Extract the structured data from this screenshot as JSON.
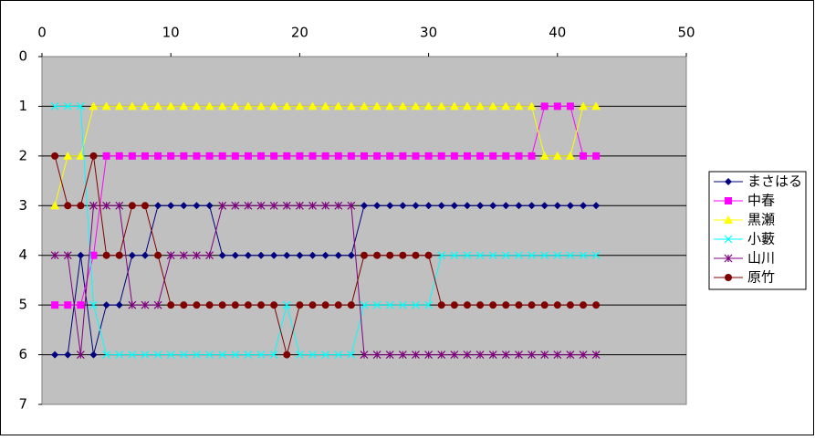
{
  "chart_data": {
    "type": "line",
    "x": [
      1,
      2,
      3,
      4,
      5,
      6,
      7,
      8,
      9,
      10,
      11,
      12,
      13,
      14,
      15,
      16,
      17,
      18,
      19,
      20,
      21,
      22,
      23,
      24,
      25,
      26,
      27,
      28,
      29,
      30,
      31,
      32,
      33,
      34,
      35,
      36,
      37,
      38,
      39,
      40,
      41,
      42,
      43
    ],
    "xlim": [
      0,
      50
    ],
    "xticks": [
      0,
      10,
      20,
      30,
      40,
      50
    ],
    "x_axis_position": "top",
    "ylim": [
      0,
      7
    ],
    "yticks": [
      0,
      1,
      2,
      3,
      4,
      5,
      6,
      7
    ],
    "y_inverted": true,
    "grid": true,
    "legend": "right",
    "plot_background": "#c0c0c0",
    "series": [
      {
        "name": "まさはる",
        "color": "#000080",
        "marker": "diamond",
        "values": [
          6,
          6,
          4,
          6,
          5,
          5,
          4,
          4,
          3,
          3,
          3,
          3,
          3,
          4,
          4,
          4,
          4,
          4,
          4,
          4,
          4,
          4,
          4,
          4,
          3,
          3,
          3,
          3,
          3,
          3,
          3,
          3,
          3,
          3,
          3,
          3,
          3,
          3,
          3,
          3,
          3,
          3,
          3
        ]
      },
      {
        "name": "中春",
        "color": "#ff00ff",
        "marker": "square",
        "values": [
          5,
          5,
          5,
          4,
          2,
          2,
          2,
          2,
          2,
          2,
          2,
          2,
          2,
          2,
          2,
          2,
          2,
          2,
          2,
          2,
          2,
          2,
          2,
          2,
          2,
          2,
          2,
          2,
          2,
          2,
          2,
          2,
          2,
          2,
          2,
          2,
          2,
          2,
          1,
          1,
          1,
          2,
          2
        ]
      },
      {
        "name": "黒瀬",
        "color": "#ffff00",
        "marker": "triangle",
        "values": [
          3,
          2,
          2,
          1,
          1,
          1,
          1,
          1,
          1,
          1,
          1,
          1,
          1,
          1,
          1,
          1,
          1,
          1,
          1,
          1,
          1,
          1,
          1,
          1,
          1,
          1,
          1,
          1,
          1,
          1,
          1,
          1,
          1,
          1,
          1,
          1,
          1,
          1,
          2,
          2,
          2,
          1,
          1
        ]
      },
      {
        "name": "小藪",
        "color": "#00ffff",
        "marker": "x",
        "values": [
          1,
          1,
          1,
          5,
          6,
          6,
          6,
          6,
          6,
          6,
          6,
          6,
          6,
          6,
          6,
          6,
          6,
          6,
          5,
          6,
          6,
          6,
          6,
          6,
          5,
          5,
          5,
          5,
          5,
          5,
          4,
          4,
          4,
          4,
          4,
          4,
          4,
          4,
          4,
          4,
          4,
          4,
          4
        ]
      },
      {
        "name": "山川",
        "color": "#800080",
        "marker": "star",
        "values": [
          4,
          4,
          6,
          3,
          3,
          3,
          5,
          5,
          5,
          4,
          4,
          4,
          4,
          3,
          3,
          3,
          3,
          3,
          3,
          3,
          3,
          3,
          3,
          3,
          6,
          6,
          6,
          6,
          6,
          6,
          6,
          6,
          6,
          6,
          6,
          6,
          6,
          6,
          6,
          6,
          6,
          6,
          6
        ]
      },
      {
        "name": "原竹",
        "color": "#800000",
        "marker": "circle",
        "values": [
          2,
          3,
          3,
          2,
          4,
          4,
          3,
          3,
          4,
          5,
          5,
          5,
          5,
          5,
          5,
          5,
          5,
          5,
          6,
          5,
          5,
          5,
          5,
          5,
          4,
          4,
          4,
          4,
          4,
          4,
          5,
          5,
          5,
          5,
          5,
          5,
          5,
          5,
          5,
          5,
          5,
          5,
          5
        ]
      }
    ]
  }
}
